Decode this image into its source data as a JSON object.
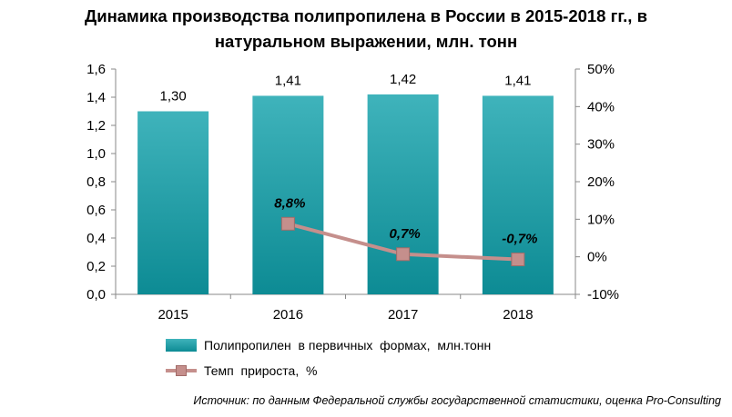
{
  "title": {
    "line1": "Динамика производства полипропилена в России в 2015-2018 гг., в",
    "line2": "натуральном выражении, млн. тонн"
  },
  "chart_data": {
    "type": "bar",
    "categories": [
      "2015",
      "2016",
      "2017",
      "2018"
    ],
    "series": [
      {
        "name": "Полипропилен  в первичных  формах,  млн.тонн",
        "type": "bar",
        "axis": "left",
        "values": [
          1.3,
          1.41,
          1.42,
          1.41
        ],
        "labels": [
          "1,30",
          "1,41",
          "1,42",
          "1,41"
        ],
        "color": "#1a9aa3"
      },
      {
        "name": "Темп  прироста,  %",
        "type": "line",
        "axis": "right",
        "values": [
          null,
          8.8,
          0.7,
          -0.7
        ],
        "labels": [
          "",
          "8,8%",
          "0,7%",
          "-0,7%"
        ],
        "color": "#c58f8c"
      }
    ],
    "y_left": {
      "lim": [
        0,
        1.6
      ],
      "ticks": [
        0,
        0.2,
        0.4,
        0.6,
        0.8,
        1.0,
        1.2,
        1.4,
        1.6
      ],
      "tick_labels": [
        "0,0",
        "0,2",
        "0,4",
        "0,6",
        "0,8",
        "1,0",
        "1,2",
        "1,4",
        "1,6"
      ]
    },
    "y_right": {
      "lim": [
        -10,
        50
      ],
      "ticks": [
        -10,
        0,
        10,
        20,
        30,
        40,
        50
      ],
      "tick_labels": [
        "-10%",
        "0%",
        "10%",
        "20%",
        "30%",
        "40%",
        "50%"
      ]
    },
    "grid": false,
    "legend_position": "bottom"
  },
  "source": "Источник: по данным Федеральной службы государственной статистики, оценка Pro-Consulting"
}
